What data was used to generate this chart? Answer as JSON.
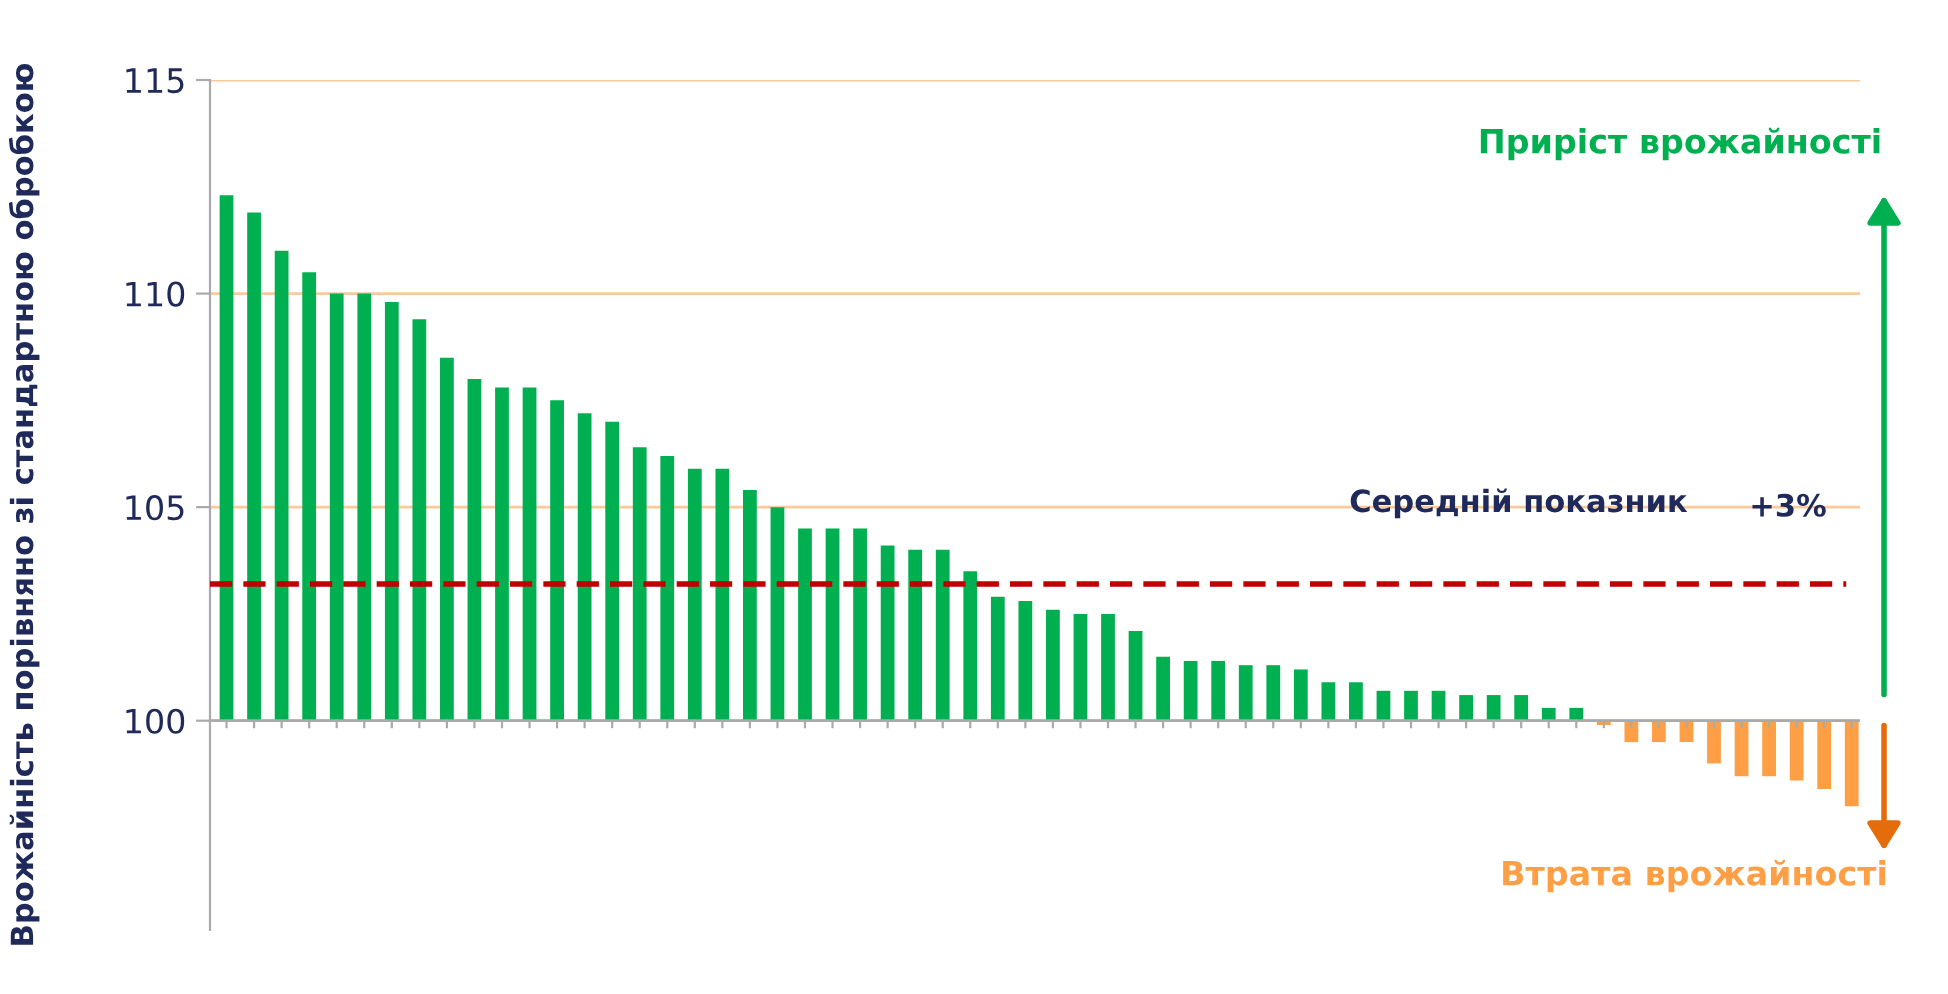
{
  "chart_data": {
    "type": "bar",
    "ylabel": "Врожайність порівняно зі стандартною обробкою",
    "categories": [
      null,
      null,
      null,
      null,
      null,
      null,
      null,
      null,
      null,
      null,
      null,
      null,
      null,
      null,
      null,
      null,
      null,
      null,
      null,
      null,
      null,
      null,
      null,
      null,
      null,
      null,
      null,
      null,
      null,
      null,
      null,
      null,
      null,
      null,
      null,
      null,
      null,
      null,
      null,
      null,
      null,
      null,
      null,
      null,
      null,
      null,
      null,
      null,
      null,
      null,
      null,
      null,
      null,
      null,
      null,
      null,
      null,
      null,
      null,
      null
    ],
    "values": [
      12.3,
      11.9,
      11.0,
      10.5,
      10.0,
      10.0,
      9.8,
      9.4,
      8.5,
      8.0,
      7.8,
      7.8,
      7.5,
      7.2,
      7.0,
      6.4,
      6.2,
      5.9,
      5.9,
      5.4,
      5.0,
      4.5,
      4.5,
      4.5,
      4.1,
      4.0,
      4.0,
      3.5,
      2.9,
      2.8,
      2.6,
      2.5,
      2.5,
      2.1,
      1.5,
      1.4,
      1.4,
      1.3,
      1.3,
      1.2,
      0.9,
      0.9,
      0.7,
      0.7,
      0.7,
      0.6,
      0.6,
      0.6,
      0.3,
      0.3,
      -0.1,
      -0.5,
      -0.5,
      -0.5,
      -1.0,
      -1.3,
      -1.3,
      -1.4,
      -1.6,
      -2.0
    ],
    "base": [
      100,
      100,
      100,
      100,
      100,
      100,
      100,
      100,
      100,
      100,
      100,
      100,
      100,
      100,
      100,
      100,
      100,
      100,
      100,
      100,
      100,
      100,
      100,
      100,
      100,
      100,
      100,
      100,
      100,
      100,
      100,
      100,
      100,
      100,
      100,
      100,
      100,
      100,
      100,
      100,
      100,
      100,
      100,
      100,
      100,
      100,
      100,
      100,
      100,
      100,
      100,
      100,
      100,
      100,
      100,
      100,
      100,
      100,
      100,
      100
    ],
    "colors": [
      "#00b050",
      "#00b050",
      "#00b050",
      "#00b050",
      "#00b050",
      "#00b050",
      "#00b050",
      "#00b050",
      "#00b050",
      "#00b050",
      "#00b050",
      "#00b050",
      "#00b050",
      "#00b050",
      "#00b050",
      "#00b050",
      "#00b050",
      "#00b050",
      "#00b050",
      "#00b050",
      "#00b050",
      "#00b050",
      "#00b050",
      "#00b050",
      "#00b050",
      "#00b050",
      "#00b050",
      "#00b050",
      "#00b050",
      "#00b050",
      "#00b050",
      "#00b050",
      "#00b050",
      "#00b050",
      "#00b050",
      "#00b050",
      "#00b050",
      "#00b050",
      "#00b050",
      "#00b050",
      "#00b050",
      "#00b050",
      "#00b050",
      "#00b050",
      "#00b050",
      "#00b050",
      "#00b050",
      "#00b050",
      "#00b050",
      "#00b050",
      "#ff9f45",
      "#ff9f45",
      "#ff9f45",
      "#ff9f45",
      "#ff9f45",
      "#ff9f45",
      "#ff9f45",
      "#ff9f45",
      "#ff9f45",
      "#ff9f45"
    ],
    "ylim": [
      95.1,
      115
    ],
    "yticks": [
      100,
      105,
      110,
      115
    ],
    "grid": "y",
    "tick_labels": "y",
    "ref_lines": [
      {
        "axis": "y",
        "value": 100,
        "color": "#aaaaaa",
        "line_style": "solid"
      },
      {
        "axis": "y",
        "value": 103.2,
        "label": "Середній показник",
        "color": "#c00000",
        "line_style": "dashed"
      }
    ],
    "annotations": [
      "+3%",
      "Приріст врожайності",
      "Втрата врожайності"
    ]
  }
}
